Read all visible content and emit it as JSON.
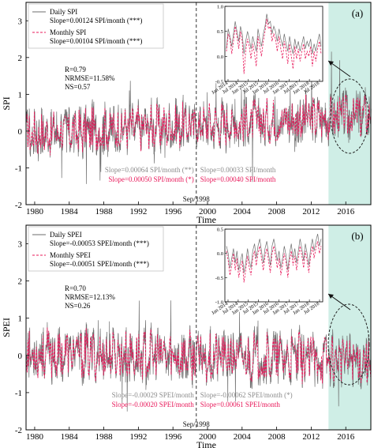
{
  "colors": {
    "daily": "#6e6e6e",
    "monthly": "#e8185a",
    "shade": "#cfeee6",
    "gray_text": "#8c8c8c",
    "red_text": "#e8185a"
  },
  "chart_data": [
    {
      "type": "line",
      "panel_label": "(a)",
      "ylabel": "SPI",
      "xlabel": "Time",
      "xlim": [
        1979.0,
        2018.9
      ],
      "ylim": [
        -2,
        3.5
      ],
      "yticks": [
        -2,
        -1,
        0,
        1,
        2,
        3
      ],
      "xticks": [
        1980,
        1984,
        1988,
        1992,
        1996,
        2000,
        2004,
        2008,
        2012,
        2016
      ],
      "change_point_label": "Sep/1998",
      "change_point_year": 1998.7,
      "shaded_range": [
        2014.0,
        2018.9
      ],
      "legend": {
        "daily_name": "Daily SPI",
        "daily_slope": "Slope=0.00124 SPI/month (***)",
        "monthly_name": "Monthly SPI",
        "monthly_slope": "Slope=0.00104 SPI/month (***)"
      },
      "stats": {
        "r": "R=0.79",
        "nrmse": "NRMSE=11.58%",
        "ns": "NS=0.57"
      },
      "period_slopes": {
        "before_daily": "Slope=0.00064 SPI/month (**)",
        "before_monthly": "Slope=0.00050 SPI/month (*)",
        "after_daily": "Slope=0.00033 SPI/month",
        "after_monthly": "Slope=0.00040 SPI/month"
      },
      "trend": {
        "base": -0.08,
        "slope_per_year": 0.013,
        "amplitude": 0.55
      },
      "inset": {
        "ylim": [
          -0.5,
          1.0
        ],
        "yticks": [
          -0.5,
          0.0,
          0.5,
          1.0
        ],
        "tick_labels": [
          "Jan 2014",
          "Jul 2014",
          "Jan 2015",
          "Jul 2015",
          "Jan 2016",
          "Jul 2016",
          "Jan 2017",
          "Jul 2017",
          "Jan 2018",
          "Jul 2018"
        ],
        "daily": [
          0.15,
          0.55,
          0.4,
          0.2,
          0.45,
          0.7,
          0.5,
          0.3,
          0.6,
          0.45,
          0.05,
          0.3,
          0.5,
          0.35,
          0.15,
          0.4,
          0.25,
          0.1,
          0.55,
          0.35,
          0.2,
          0.45,
          0.6,
          0.85,
          0.65,
          0.7,
          0.45,
          0.6,
          0.5,
          0.3,
          0.55,
          0.35,
          0.2,
          0.45,
          0.25,
          0.1,
          0.4,
          0.2,
          0.05,
          0.35,
          0.15,
          0.3,
          0.1,
          0.25,
          0.4,
          0.15,
          0.3,
          0.2,
          0.35,
          0.05,
          0.25,
          0.1,
          0.3,
          0.45,
          0.2
        ],
        "monthly": [
          0.1,
          0.45,
          0.35,
          0.05,
          0.3,
          0.6,
          0.4,
          0.15,
          0.5,
          0.3,
          -0.35,
          0.1,
          0.35,
          0.2,
          -0.05,
          0.25,
          0.05,
          -0.2,
          0.4,
          0.2,
          0.0,
          0.3,
          0.5,
          0.75,
          0.55,
          0.6,
          0.3,
          0.45,
          0.35,
          0.1,
          0.4,
          0.15,
          -0.05,
          0.3,
          0.1,
          -0.15,
          0.25,
          0.0,
          -0.25,
          0.2,
          -0.05,
          0.15,
          -0.1,
          0.1,
          0.25,
          -0.05,
          0.1,
          0.0,
          0.2,
          -0.2,
          0.1,
          -0.1,
          0.15,
          0.3,
          0.05
        ]
      }
    },
    {
      "type": "line",
      "panel_label": "(b)",
      "ylabel": "SPEI",
      "xlabel": "Time",
      "xlim": [
        1979.0,
        2018.9
      ],
      "ylim": [
        -2,
        3.5
      ],
      "yticks": [
        -2,
        -1,
        0,
        1,
        2,
        3
      ],
      "xticks": [
        1980,
        1984,
        1988,
        1992,
        1996,
        2000,
        2004,
        2008,
        2012,
        2016
      ],
      "change_point_label": "Sep/1998",
      "change_point_year": 1998.7,
      "shaded_range": [
        2014.0,
        2018.9
      ],
      "legend": {
        "daily_name": "Daily SPEI",
        "daily_slope": "Slope=-0.00053 SPEI/month (***)",
        "monthly_name": "Monthly SPEI",
        "monthly_slope": "Slope=-0.00051 SPEI/month (***)"
      },
      "stats": {
        "r": "R=0.70",
        "nrmse": "NRMSE=12.13%",
        "ns": "NS=0.26"
      },
      "period_slopes": {
        "before_daily": "Slope=-0.00029 SPEI/month",
        "before_monthly": "Slope=-0.00020 SPEI/month",
        "after_daily": "Slope=-0.00062 SPEI/month (*)",
        "after_monthly": "Slope=0.00061 SPEI/month"
      },
      "trend": {
        "base": 0.05,
        "slope_per_year": -0.004,
        "amplitude": 0.6
      },
      "inset": {
        "ylim": [
          -1.0,
          0.5
        ],
        "yticks": [
          -1.0,
          -0.5,
          0.0,
          0.5
        ],
        "tick_labels": [
          "Jan 2014",
          "Jul 2014",
          "Jan 2015",
          "Jul 2015",
          "Jan 2016",
          "Jul 2016",
          "Jan 2017",
          "Jul 2017",
          "Jan 2018",
          "Jul 2018"
        ],
        "daily": [
          0.15,
          0.0,
          -0.3,
          -0.1,
          0.1,
          -0.2,
          0.05,
          -0.35,
          -0.15,
          0.0,
          -0.4,
          -0.2,
          0.1,
          -0.15,
          -0.3,
          0.05,
          0.2,
          -0.1,
          0.15,
          0.3,
          0.05,
          -0.2,
          0.1,
          0.25,
          0.0,
          -0.25,
          0.15,
          0.3,
          0.1,
          -0.15,
          0.05,
          -0.3,
          -0.1,
          0.15,
          -0.05,
          -0.35,
          0.0,
          0.2,
          -0.1,
          0.1,
          -0.2,
          0.05,
          0.3,
          0.1,
          -0.15,
          0.2,
          0.0,
          -0.25,
          0.1,
          0.3,
          0.05,
          0.25,
          0.4,
          0.15,
          0.3
        ],
        "monthly": [
          0.05,
          -0.15,
          -0.45,
          -0.25,
          0.0,
          -0.35,
          -0.1,
          -0.5,
          -0.3,
          -0.15,
          -0.6,
          -0.35,
          -0.05,
          -0.3,
          -0.45,
          -0.1,
          0.05,
          -0.25,
          0.0,
          0.15,
          -0.1,
          -0.35,
          -0.05,
          0.1,
          -0.15,
          -0.4,
          0.0,
          0.15,
          -0.05,
          -0.3,
          -0.1,
          -0.45,
          -0.25,
          0.0,
          -0.2,
          -0.5,
          -0.15,
          0.05,
          -0.25,
          -0.05,
          -0.35,
          -0.1,
          0.15,
          -0.05,
          -0.3,
          0.05,
          -0.15,
          -0.4,
          -0.05,
          0.15,
          -0.1,
          0.1,
          0.25,
          0.0,
          0.15
        ]
      }
    }
  ]
}
